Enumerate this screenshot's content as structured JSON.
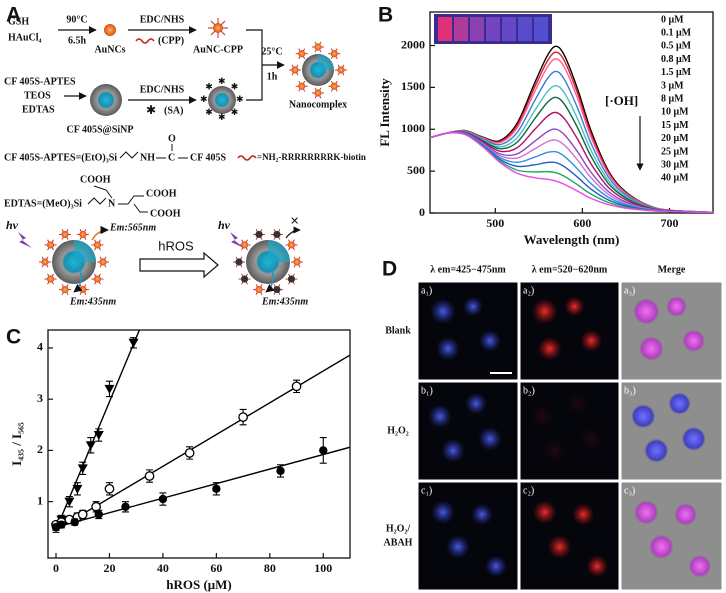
{
  "panel_labels": [
    "A",
    "B",
    "C",
    "D"
  ],
  "scheme": {
    "reactants": [
      "GSH",
      "HAuCl₄"
    ],
    "step1": [
      "90°C",
      "6.5h"
    ],
    "aunc": "AuNCs",
    "step2": [
      "EDC/NHS",
      "(CPP)"
    ],
    "aunc_cpp": "AuNC-CPP",
    "step3": [
      "25°C",
      "1h"
    ],
    "silica_reactants": [
      "CF 405S-APTES",
      "TEOS",
      "EDTAS"
    ],
    "step4": [
      "EDC/NHS",
      "(SA)"
    ],
    "sinp": "CF 405S@SiNP",
    "product": "Nanocomplex",
    "legend_aptes": [
      "CF 405S-APTES=(EtO)₃Si",
      "NH",
      "C",
      "O",
      "CF 405S"
    ],
    "legend_cpp": "=NH₂-RRRRRRRRK-biotin",
    "legend_edtas": [
      "EDTAS=(MeO)₃Si",
      "N",
      "COOH",
      "COOH",
      "COOH"
    ],
    "sensing": {
      "hv_left": "hv",
      "em_left_top": "Em:565nm",
      "em_left_bottom": "Em:435nm",
      "arrow": "hROS",
      "hv_right": "hv",
      "em_right": "Em:435nm"
    }
  },
  "chart_data": [
    {
      "type": "line",
      "xlabel": "Wavelength (nm)",
      "ylabel": "FL Intensity",
      "annotation": "[·OH]",
      "x": [
        425,
        445,
        465,
        485,
        505,
        525,
        545,
        560,
        570,
        580,
        595,
        610,
        630,
        650,
        675,
        700,
        750
      ],
      "xlim": [
        425,
        750
      ],
      "xticks": [
        500,
        600,
        700
      ],
      "ylim": [
        0,
        2400
      ],
      "yticks": [
        0,
        500,
        1000,
        1500,
        2000
      ],
      "series": [
        {
          "name": "0 μM",
          "color": "#000000",
          "values": [
            900,
            955,
            985,
            909,
            864,
            1071,
            1548,
            1883,
            1990,
            1868,
            1465,
            980,
            502,
            251,
            94,
            33,
            8
          ]
        },
        {
          "name": "0.1 μM",
          "color": "#d62020",
          "values": [
            900,
            955,
            983,
            904,
            853,
            1045,
            1499,
            1818,
            1920,
            1802,
            1413,
            945,
            485,
            242,
            91,
            33,
            8
          ]
        },
        {
          "name": "0.5 μM",
          "color": "#ff5fa0",
          "values": [
            900,
            955,
            981,
            898,
            840,
            1015,
            1443,
            1745,
            1840,
            1726,
            1353,
            905,
            465,
            233,
            88,
            32,
            8
          ]
        },
        {
          "name": "0.8 μM",
          "color": "#3a7bd5",
          "values": [
            900,
            955,
            976,
            888,
            816,
            960,
            1338,
            1607,
            1690,
            1583,
            1240,
            830,
            427,
            215,
            82,
            30,
            8
          ]
        },
        {
          "name": "1.5 μM",
          "color": "#49c0c0",
          "values": [
            900,
            955,
            971,
            876,
            789,
            897,
            1219,
            1450,
            1520,
            1422,
            1113,
            745,
            385,
            194,
            75,
            29,
            8
          ]
        },
        {
          "name": "3 μM",
          "color": "#0d6b3a",
          "values": [
            900,
            955,
            967,
            866,
            767,
            845,
            1121,
            1322,
            1380,
            1289,
            1008,
            675,
            350,
            178,
            69,
            27,
            8
          ]
        },
        {
          "name": "8 μM",
          "color": "#b0106a",
          "values": [
            900,
            955,
            962,
            854,
            738,
            779,
            995,
            1156,
            1200,
            1118,
            873,
            585,
            305,
            156,
            62,
            26,
            8
          ]
        },
        {
          "name": "10 μM",
          "color": "#8e44c8",
          "values": [
            900,
            955,
            956,
            840,
            706,
            705,
            855,
            972,
            1000,
            928,
            723,
            485,
            255,
            132,
            54,
            24,
            8
          ]
        },
        {
          "name": "15 μM",
          "color": "#d070d0",
          "values": [
            900,
            955,
            952,
            830,
            685,
            656,
            764,
            852,
            870,
            804,
            625,
            420,
            222,
            116,
            49,
            22,
            8
          ]
        },
        {
          "name": "20 μM",
          "color": "#2f8fe0",
          "values": [
            900,
            955,
            947,
            821,
            663,
            605,
            666,
            724,
            730,
            671,
            520,
            350,
            187,
            100,
            43,
            21,
            8
          ]
        },
        {
          "name": "25 μM",
          "color": "#1c5cc0",
          "values": [
            900,
            955,
            944,
            812,
            642,
            557,
            575,
            604,
            600,
            548,
            423,
            285,
            155,
            84,
            38,
            20,
            8
          ]
        },
        {
          "name": "30 μM",
          "color": "#1faa5a",
          "values": [
            900,
            955,
            940,
            803,
            623,
            512,
            491,
            494,
            480,
            434,
            333,
            225,
            125,
            70,
            33,
            18,
            8
          ]
        },
        {
          "name": "40 μM",
          "color": "#ee44ee",
          "values": [
            900,
            955,
            937,
            796,
            607,
            475,
            421,
            402,
            380,
            339,
            258,
            175,
            100,
            58,
            29,
            17,
            8
          ]
        }
      ]
    },
    {
      "type": "scatter",
      "xlabel": "hROS (μM)",
      "ylabel": "I₄₃₅ / I₅₆₅",
      "xlim": [
        -3,
        110
      ],
      "xticks": [
        0,
        20,
        40,
        60,
        80,
        100
      ],
      "ylim": [
        -0.1,
        4.35
      ],
      "yticks": [
        1,
        2,
        3,
        4
      ],
      "series": [
        {
          "marker": "triangle-down",
          "color": "#000000",
          "x": [
            0,
            2,
            5,
            8,
            10,
            13,
            16,
            20,
            29
          ],
          "values": [
            0.5,
            0.65,
            1.0,
            1.25,
            1.65,
            2.1,
            2.3,
            3.2,
            4.1
          ],
          "errors": [
            0.1,
            0.08,
            0.1,
            0.12,
            0.12,
            0.15,
            0.12,
            0.15,
            0.1
          ],
          "fit": {
            "slope": 0.125,
            "intercept": 0.45
          }
        },
        {
          "marker": "circle-open",
          "color": "#000000",
          "x": [
            0,
            2,
            5,
            8,
            10,
            15,
            20,
            35,
            50,
            70,
            90
          ],
          "values": [
            0.55,
            0.6,
            0.65,
            0.7,
            0.75,
            0.9,
            1.25,
            1.5,
            1.95,
            2.65,
            3.25
          ],
          "errors": [
            0.06,
            0.06,
            0.06,
            0.08,
            0.08,
            0.1,
            0.12,
            0.12,
            0.12,
            0.15,
            0.12
          ],
          "fit": {
            "slope": 0.031,
            "intercept": 0.45
          }
        },
        {
          "marker": "circle",
          "color": "#000000",
          "x": [
            0,
            2,
            7,
            16,
            26,
            40,
            60,
            84,
            100
          ],
          "values": [
            0.5,
            0.55,
            0.6,
            0.75,
            0.9,
            1.05,
            1.25,
            1.6,
            2.0
          ],
          "errors": [
            0.06,
            0.06,
            0.06,
            0.08,
            0.1,
            0.12,
            0.12,
            0.12,
            0.25
          ],
          "fit": {
            "slope": 0.0142,
            "intercept": 0.5
          }
        }
      ]
    }
  ],
  "micrographs": {
    "columns": [
      "λ em=425−475nm",
      "λ em=520−620nm",
      "Merge"
    ],
    "rows": [
      [
        "Blank"
      ],
      [
        "H₂O₂"
      ],
      [
        "H₂O₂/",
        "ABAH"
      ]
    ],
    "tiles": [
      [
        "a₁)",
        "a₂)",
        "a₃)"
      ],
      [
        "b₁)",
        "b₂)",
        "b₃)"
      ],
      [
        "c₁)",
        "c₂)",
        "c₃)"
      ]
    ]
  }
}
